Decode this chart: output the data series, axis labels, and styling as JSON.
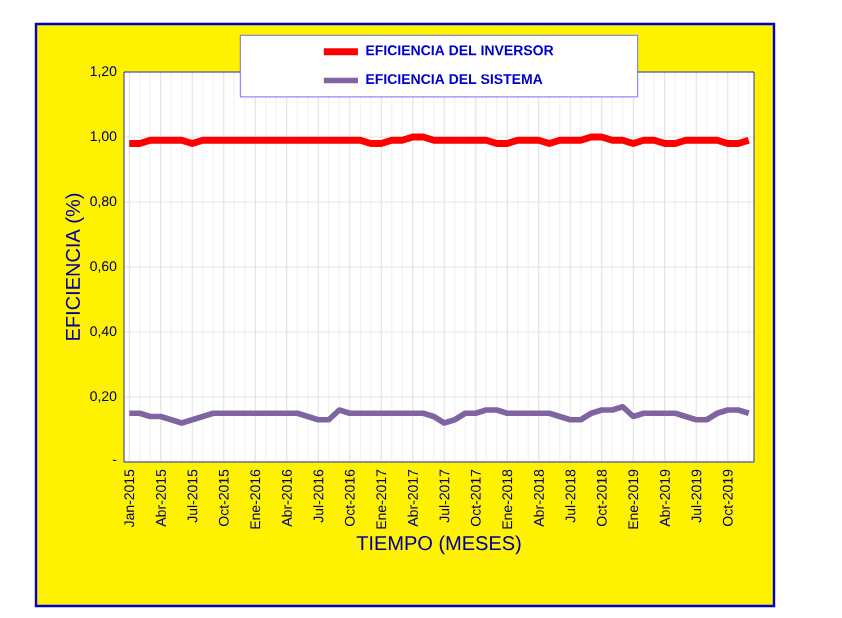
{
  "chart_data": {
    "type": "line",
    "xlabel": "TIEMPO (MESES)",
    "ylabel": "EFICIENCIA (%)",
    "categories": [
      "Jan-2015",
      null,
      null,
      "Abr-2015",
      null,
      null,
      "Jul-2015",
      null,
      null,
      "Oct-2015",
      null,
      null,
      "Ene-2016",
      null,
      null,
      "Abr-2016",
      null,
      null,
      "Jul-2016",
      null,
      null,
      "Oct-2016",
      null,
      null,
      "Ene-2017",
      null,
      null,
      "Abr-2017",
      null,
      null,
      "Jul-2017",
      null,
      null,
      "Oct-2017",
      null,
      null,
      "Ene-2018",
      null,
      null,
      "Abr-2018",
      null,
      null,
      "Jul-2018",
      null,
      null,
      "Oct-2018",
      null,
      null,
      "Ene-2019",
      null,
      null,
      "Abr-2019",
      null,
      null,
      "Jul-2019",
      null,
      null,
      "Oct-2019",
      null,
      null
    ],
    "series": [
      {
        "name": "EFICIENCIA DEL INVERSOR",
        "color": "#ff0000",
        "values": [
          0.98,
          0.98,
          0.99,
          0.99,
          0.99,
          0.99,
          0.98,
          0.99,
          0.99,
          0.99,
          0.99,
          0.99,
          0.99,
          0.99,
          0.99,
          0.99,
          0.99,
          0.99,
          0.99,
          0.99,
          0.99,
          0.99,
          0.99,
          0.98,
          0.98,
          0.99,
          0.99,
          1.0,
          1.0,
          0.99,
          0.99,
          0.99,
          0.99,
          0.99,
          0.99,
          0.98,
          0.98,
          0.99,
          0.99,
          0.99,
          0.98,
          0.99,
          0.99,
          0.99,
          1.0,
          1.0,
          0.99,
          0.99,
          0.98,
          0.99,
          0.99,
          0.98,
          0.98,
          0.99,
          0.99,
          0.99,
          0.99,
          0.98,
          0.98,
          0.99
        ]
      },
      {
        "name": "EFICIENCIA DEL SISTEMA",
        "color": "#8064a2",
        "values": [
          0.15,
          0.15,
          0.14,
          0.14,
          0.13,
          0.12,
          0.13,
          0.14,
          0.15,
          0.15,
          0.15,
          0.15,
          0.15,
          0.15,
          0.15,
          0.15,
          0.15,
          0.14,
          0.13,
          0.13,
          0.16,
          0.15,
          0.15,
          0.15,
          0.15,
          0.15,
          0.15,
          0.15,
          0.15,
          0.14,
          0.12,
          0.13,
          0.15,
          0.15,
          0.16,
          0.16,
          0.15,
          0.15,
          0.15,
          0.15,
          0.15,
          0.14,
          0.13,
          0.13,
          0.15,
          0.16,
          0.16,
          0.17,
          0.14,
          0.15,
          0.15,
          0.15,
          0.15,
          0.14,
          0.13,
          0.13,
          0.15,
          0.16,
          0.16,
          0.15
        ]
      }
    ],
    "ylim": [
      0,
      1.2
    ],
    "yticks": [
      {
        "value": 0,
        "label": "-"
      },
      {
        "value": 0.2,
        "label": "0,20"
      },
      {
        "value": 0.4,
        "label": "0,40"
      },
      {
        "value": 0.6,
        "label": "0,60"
      },
      {
        "value": 0.8,
        "label": "0,80"
      },
      {
        "value": 1.0,
        "label": "1,00"
      },
      {
        "value": 1.2,
        "label": "1,20"
      }
    ],
    "grid": true,
    "legend": "top",
    "marker": "none",
    "line_style": "solid"
  }
}
